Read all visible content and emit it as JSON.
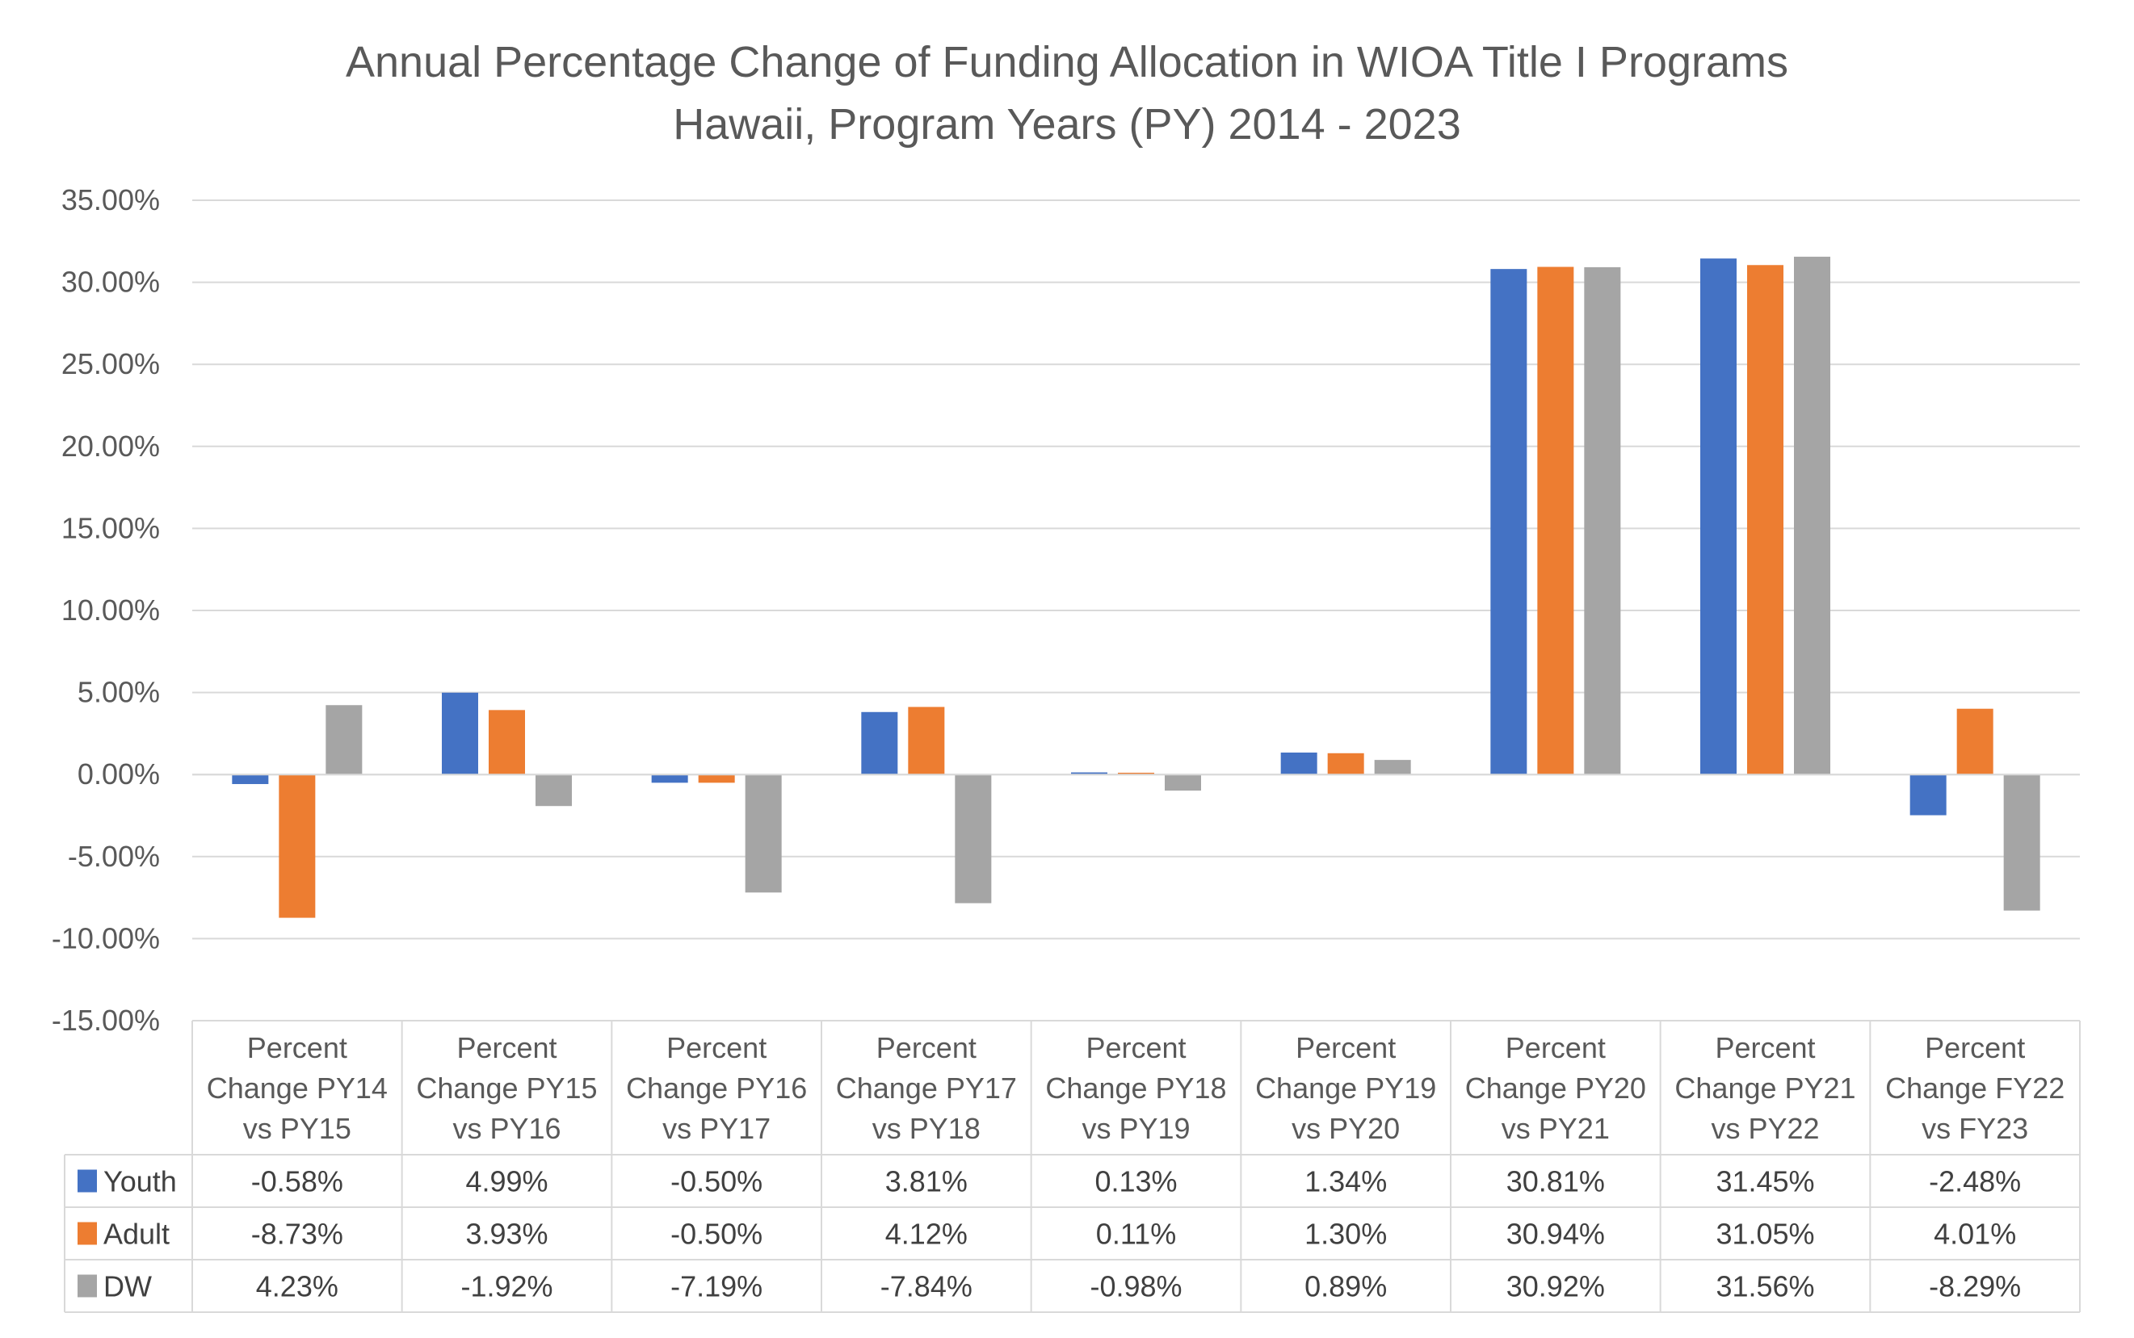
{
  "chart_data": {
    "type": "bar",
    "title": "Annual Percentage Change of Funding Allocation in WIOA Title I Programs",
    "subtitle": "Hawaii, Program Years (PY) 2014 - 2023",
    "xlabel": "",
    "ylabel": "",
    "ylim": [
      -15,
      35
    ],
    "yticks": [
      35,
      30,
      25,
      20,
      15,
      10,
      5,
      0,
      -5,
      -10,
      -15
    ],
    "ytick_labels": [
      "35.00%",
      "30.00%",
      "25.00%",
      "20.00%",
      "15.00%",
      "10.00%",
      "5.00%",
      "0.00%",
      "-5.00%",
      "-10.00%",
      "-15.00%"
    ],
    "grid": true,
    "legend": "data-table",
    "categories": [
      [
        "Percent",
        "Change PY14",
        "vs PY15"
      ],
      [
        "Percent",
        "Change PY15",
        "vs PY16"
      ],
      [
        "Percent",
        "Change PY16",
        "vs PY17"
      ],
      [
        "Percent",
        "Change PY17",
        "vs PY18"
      ],
      [
        "Percent",
        "Change PY18",
        "vs PY19"
      ],
      [
        "Percent",
        "Change PY19",
        "vs PY20"
      ],
      [
        "Percent",
        "Change PY20",
        "vs PY21"
      ],
      [
        "Percent",
        "Change PY21",
        "vs PY22"
      ],
      [
        "Percent",
        "Change FY22",
        "vs FY23"
      ]
    ],
    "series": [
      {
        "name": "Youth",
        "color": "#4472C4",
        "values": [
          -0.58,
          4.99,
          -0.5,
          3.81,
          0.13,
          1.34,
          30.81,
          31.45,
          -2.48
        ],
        "labels": [
          "-0.58%",
          "4.99%",
          "-0.50%",
          "3.81%",
          "0.13%",
          "1.34%",
          "30.81%",
          "31.45%",
          "-2.48%"
        ]
      },
      {
        "name": "Adult",
        "color": "#ED7D31",
        "values": [
          -8.73,
          3.93,
          -0.5,
          4.12,
          0.11,
          1.3,
          30.94,
          31.05,
          4.01
        ],
        "labels": [
          "-8.73%",
          "3.93%",
          "-0.50%",
          "4.12%",
          "0.11%",
          "1.30%",
          "30.94%",
          "31.05%",
          "4.01%"
        ]
      },
      {
        "name": "DW",
        "color": "#A5A5A5",
        "values": [
          4.23,
          -1.92,
          -7.19,
          -7.84,
          -0.98,
          0.89,
          30.92,
          31.56,
          -8.29
        ],
        "labels": [
          "4.23%",
          "-1.92%",
          "-7.19%",
          "-7.84%",
          "-0.98%",
          "0.89%",
          "30.92%",
          "31.56%",
          "-8.29%"
        ]
      }
    ]
  }
}
